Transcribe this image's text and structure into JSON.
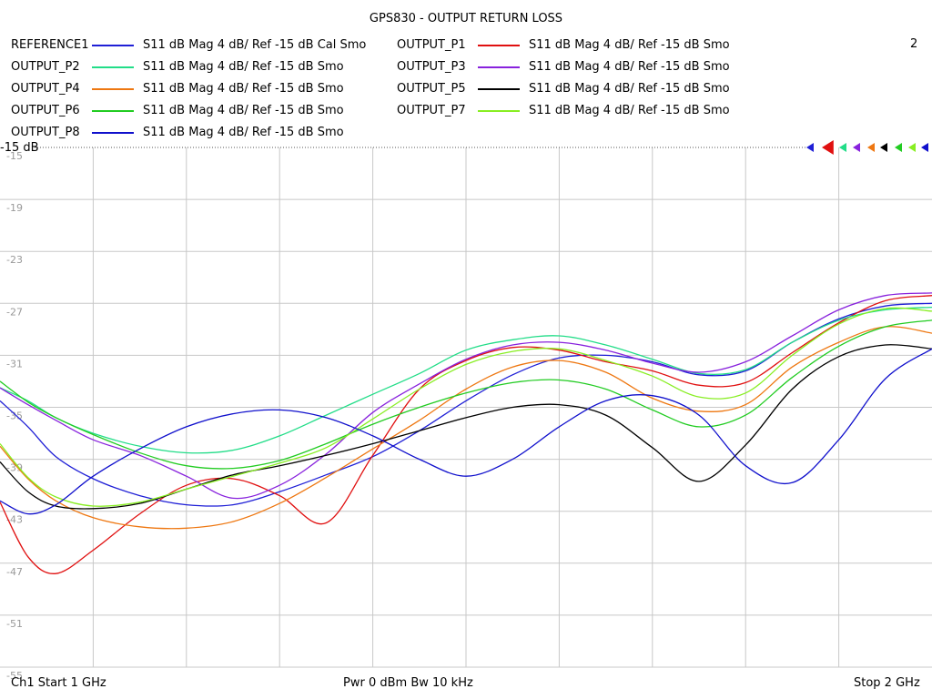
{
  "title": "GPS830 - OUTPUT RETURN LOSS",
  "channel_number": "2",
  "traces": [
    {
      "name": "REFERENCE1",
      "desc": "S11  dB Mag  4 dB/ Ref -15 dB  Cal Smo",
      "color": "#1f1fd6"
    },
    {
      "name": "OUTPUT_P1",
      "desc": "S11  dB Mag  4 dB/ Ref -15 dB  Smo",
      "color": "#e01010"
    },
    {
      "name": "OUTPUT_P2",
      "desc": "S11  dB Mag  4 dB/ Ref -15 dB  Smo",
      "color": "#22dd88"
    },
    {
      "name": "OUTPUT_P3",
      "desc": "S11  dB Mag  4 dB/ Ref -15 dB  Smo",
      "color": "#8822dd"
    },
    {
      "name": "OUTPUT_P4",
      "desc": "S11  dB Mag  4 dB/ Ref -15 dB  Smo",
      "color": "#ee7711"
    },
    {
      "name": "OUTPUT_P5",
      "desc": "S11  dB Mag  4 dB/ Ref -15 dB  Smo",
      "color": "#000000"
    },
    {
      "name": "OUTPUT_P6",
      "desc": "S11  dB Mag  4 dB/ Ref -15 dB  Smo",
      "color": "#22cc22"
    },
    {
      "name": "OUTPUT_P7",
      "desc": "S11  dB Mag  4 dB/ Ref -15 dB  Smo",
      "color": "#88ee22"
    },
    {
      "name": "OUTPUT_P8",
      "desc": "S11  dB Mag  4 dB/ Ref -15 dB  Smo",
      "color": "#1010cc"
    }
  ],
  "footer": {
    "left": "Ch1  Start  1 GHz",
    "center": "Pwr  0 dBm  Bw  10 kHz",
    "right": "Stop  2 GHz"
  },
  "chart_data": {
    "type": "line",
    "title": "GPS830 - OUTPUT RETURN LOSS",
    "x_start_ghz": 1.0,
    "x_stop_ghz": 2.0,
    "ylim": [
      -55,
      -15
    ],
    "ref_label": "-15 dB",
    "y_ticks": [
      -15,
      -19,
      -23,
      -27,
      -31,
      -35,
      -39,
      -43,
      -47,
      -51,
      -55
    ],
    "x_divisions": 10,
    "grid": true,
    "x": [
      1.0,
      1.03,
      1.06,
      1.1,
      1.15,
      1.2,
      1.25,
      1.3,
      1.35,
      1.4,
      1.45,
      1.5,
      1.55,
      1.6,
      1.65,
      1.7,
      1.75,
      1.8,
      1.85,
      1.9,
      1.95,
      2.0
    ],
    "series": [
      {
        "name": "REFERENCE1",
        "values": [
          -34.5,
          -36.5,
          -38.8,
          -40.5,
          -41.8,
          -42.5,
          -42.5,
          -41.5,
          -40.2,
          -38.8,
          -36.8,
          -34.5,
          -32.5,
          -31.2,
          -31.0,
          -31.5,
          -32.5,
          -32.2,
          -30.0,
          -28.2,
          -27.2,
          -27.0
        ]
      },
      {
        "name": "OUTPUT_P1",
        "values": [
          -42.3,
          -46.5,
          -47.8,
          -46.0,
          -43.2,
          -41.0,
          -40.5,
          -41.8,
          -43.9,
          -38.7,
          -33.6,
          -31.4,
          -30.4,
          -30.6,
          -31.5,
          -32.2,
          -33.3,
          -33.1,
          -30.8,
          -28.5,
          -26.8,
          -26.4
        ]
      },
      {
        "name": "OUTPUT_P2",
        "values": [
          -33.5,
          -34.5,
          -35.8,
          -37.0,
          -38.0,
          -38.5,
          -38.3,
          -37.2,
          -35.6,
          -34.0,
          -32.4,
          -30.6,
          -29.8,
          -29.5,
          -30.2,
          -31.3,
          -32.4,
          -32.1,
          -30.0,
          -28.3,
          -27.5,
          -27.3
        ]
      },
      {
        "name": "OUTPUT_P3",
        "values": [
          -33.5,
          -34.8,
          -36.0,
          -37.5,
          -38.7,
          -40.3,
          -42.0,
          -41.0,
          -38.6,
          -35.4,
          -33.2,
          -31.3,
          -30.2,
          -30.0,
          -30.6,
          -31.6,
          -32.3,
          -31.5,
          -29.5,
          -27.5,
          -26.4,
          -26.2
        ]
      },
      {
        "name": "OUTPUT_P4",
        "values": [
          -38.0,
          -40.5,
          -42.2,
          -43.5,
          -44.2,
          -44.3,
          -43.8,
          -42.4,
          -40.4,
          -38.2,
          -36.0,
          -33.6,
          -31.9,
          -31.4,
          -32.3,
          -34.3,
          -35.3,
          -34.8,
          -31.9,
          -30.0,
          -28.8,
          -29.3
        ]
      },
      {
        "name": "OUTPUT_P5",
        "values": [
          -39.2,
          -41.5,
          -42.6,
          -42.8,
          -42.4,
          -41.3,
          -40.2,
          -39.5,
          -38.7,
          -37.8,
          -36.8,
          -35.8,
          -35.0,
          -34.8,
          -35.6,
          -38.1,
          -40.7,
          -37.9,
          -33.6,
          -31.1,
          -30.2,
          -30.5
        ]
      },
      {
        "name": "OUTPUT_P6",
        "values": [
          -33.0,
          -34.6,
          -35.8,
          -37.1,
          -38.5,
          -39.5,
          -39.7,
          -39.1,
          -37.8,
          -36.3,
          -35.0,
          -33.9,
          -33.1,
          -32.9,
          -33.6,
          -35.2,
          -36.5,
          -35.6,
          -32.7,
          -30.3,
          -28.8,
          -28.3
        ]
      },
      {
        "name": "OUTPUT_P7",
        "values": [
          -37.8,
          -40.4,
          -41.9,
          -42.6,
          -42.3,
          -41.3,
          -40.3,
          -39.3,
          -38.1,
          -35.9,
          -33.6,
          -31.7,
          -30.7,
          -30.5,
          -31.4,
          -32.6,
          -34.2,
          -33.9,
          -31.0,
          -28.6,
          -27.4,
          -27.6
        ]
      },
      {
        "name": "OUTPUT_P8",
        "values": [
          -42.2,
          -43.2,
          -42.5,
          -40.3,
          -38.2,
          -36.5,
          -35.5,
          -35.2,
          -35.8,
          -37.2,
          -39.0,
          -40.3,
          -39.0,
          -36.5,
          -34.5,
          -34.1,
          -35.6,
          -39.5,
          -40.8,
          -37.5,
          -32.8,
          -30.5
        ]
      }
    ]
  }
}
